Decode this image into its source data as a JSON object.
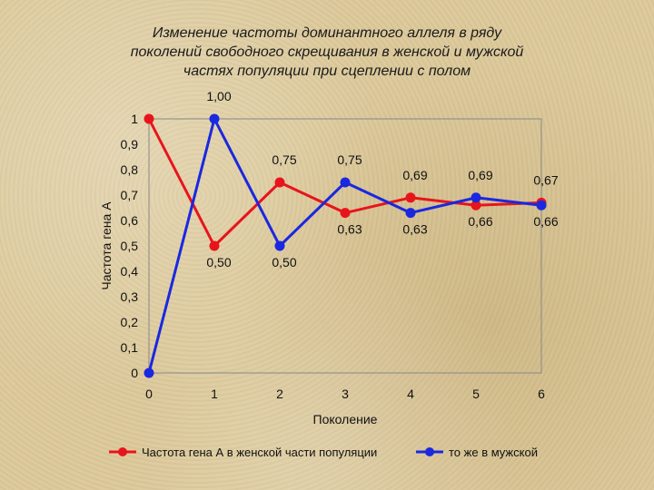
{
  "title_lines": [
    "Изменение частоты доминантного аллеля в ряду",
    "поколений свободного скрещивания в женской и мужской",
    "частях популяции при сцеплении с полом"
  ],
  "chart_data": {
    "type": "line",
    "xlabel": "Поколение",
    "ylabel": "Частота гена А",
    "x": [
      0,
      1,
      2,
      3,
      4,
      5,
      6
    ],
    "xlim": [
      0,
      6
    ],
    "ylim": [
      0,
      1
    ],
    "y_ticks": [
      0,
      0.1,
      0.2,
      0.3,
      0.4,
      0.5,
      0.6,
      0.7,
      0.8,
      0.9,
      1
    ],
    "y_tick_labels": [
      "0",
      "0,1",
      "0,2",
      "0,3",
      "0,4",
      "0,5",
      "0,6",
      "0,7",
      "0,8",
      "0,9",
      "1"
    ],
    "x_tick_labels": [
      "0",
      "1",
      "2",
      "3",
      "4",
      "5",
      "6"
    ],
    "grid": false,
    "legend_position": "bottom",
    "series": [
      {
        "name": "Частота гена А в женской части популяции",
        "color": "#e8141c",
        "values": [
          1,
          0.5,
          0.75,
          0.63,
          0.69,
          0.66,
          0.67
        ],
        "labels": [
          "",
          "0,50",
          "0,75",
          "0,63",
          "0,69",
          "0,66",
          "0,67"
        ]
      },
      {
        "name": "то же в мужской",
        "color": "#1a28e0",
        "values": [
          0,
          1,
          0.5,
          0.75,
          0.63,
          0.69,
          0.66
        ],
        "labels": [
          "",
          "1,00",
          "0,50",
          "0,75",
          "0,63",
          "0,69",
          "0,66"
        ]
      }
    ]
  }
}
